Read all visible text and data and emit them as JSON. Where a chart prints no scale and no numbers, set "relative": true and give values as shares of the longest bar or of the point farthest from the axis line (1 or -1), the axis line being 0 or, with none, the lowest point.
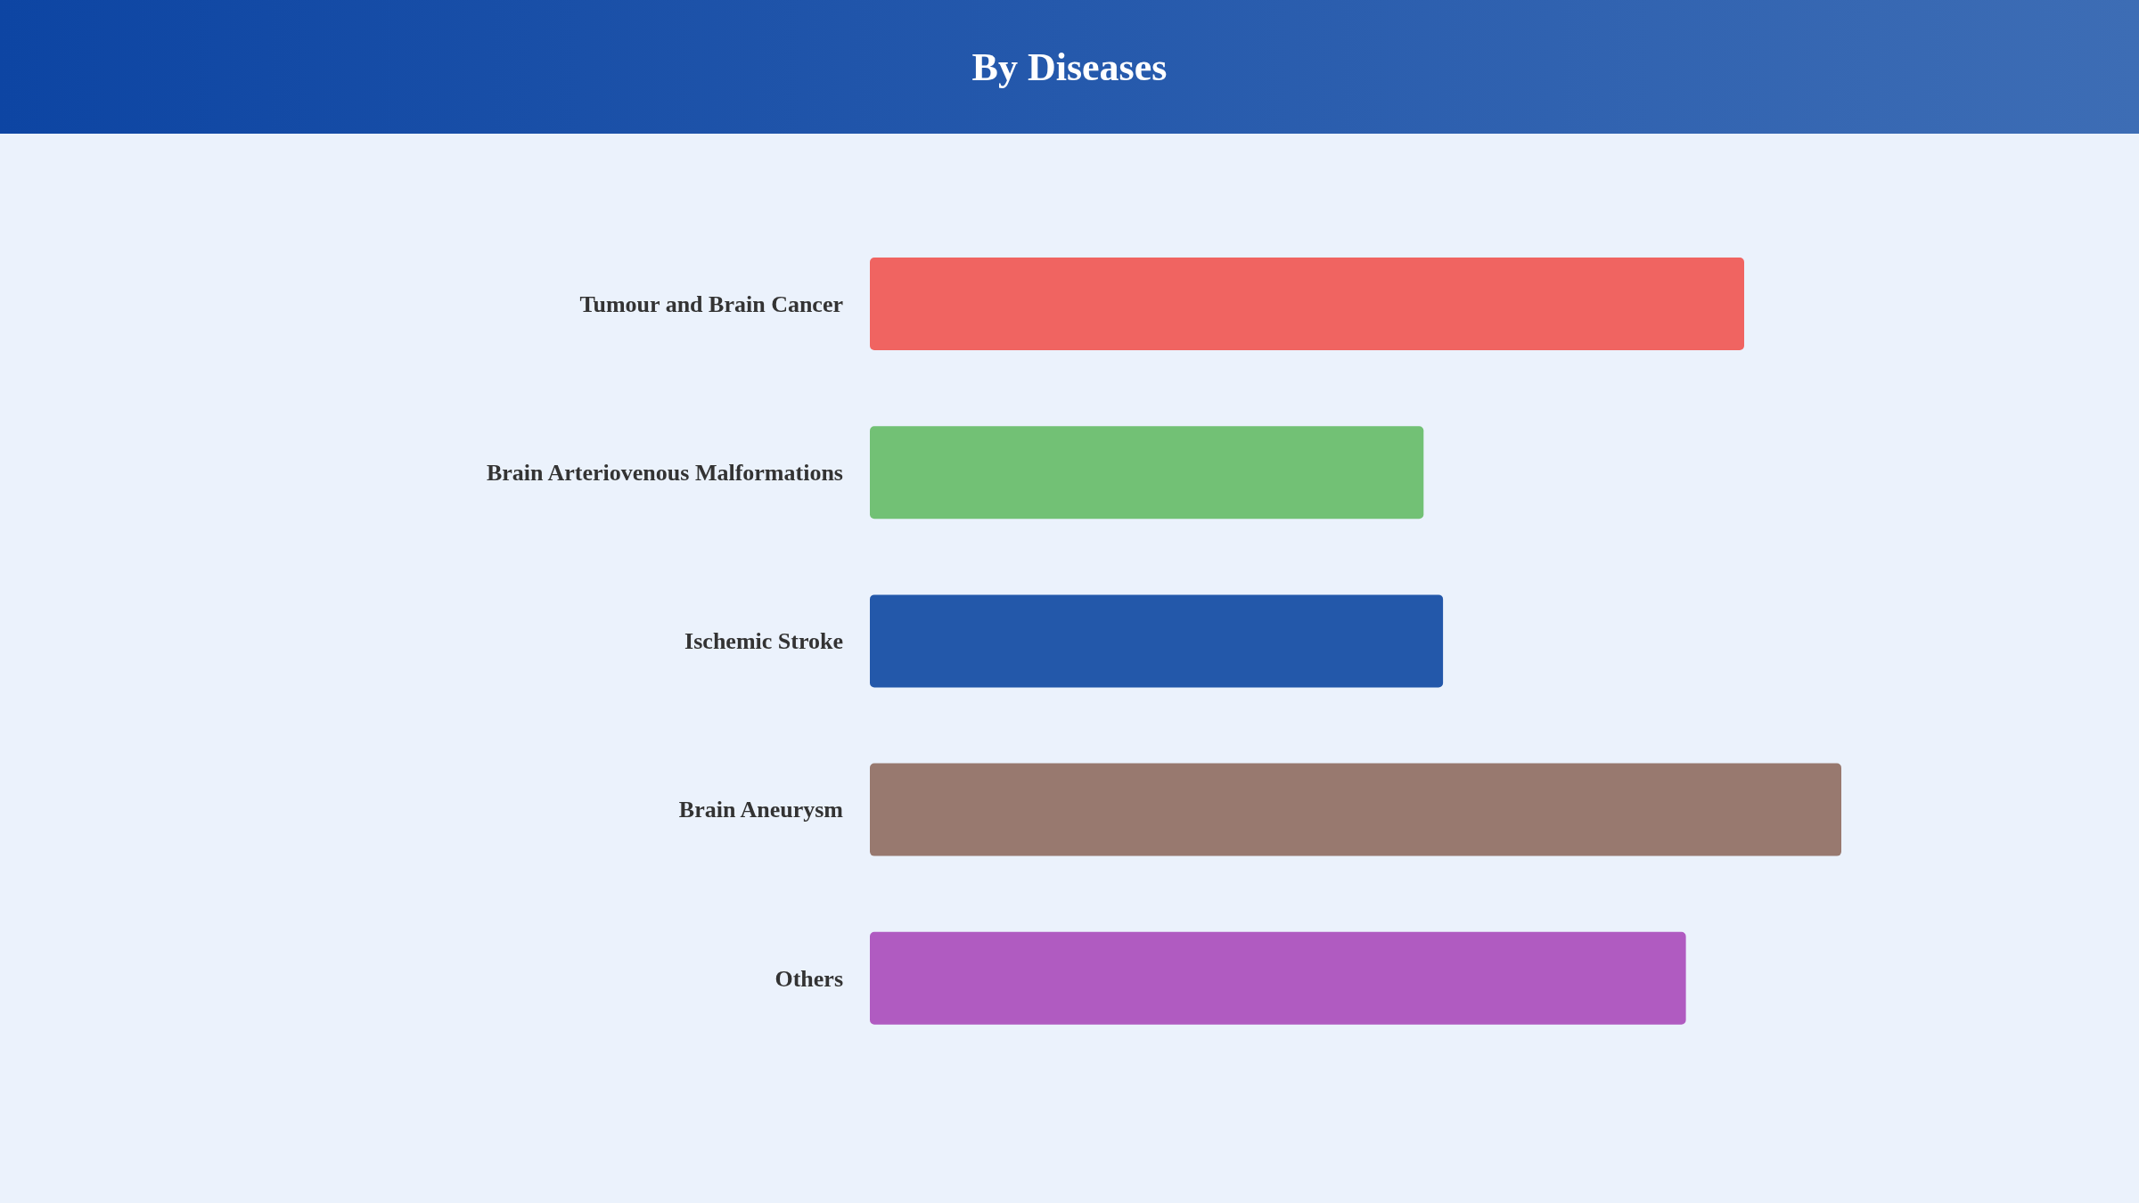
{
  "chart_data": {
    "type": "bar",
    "title": "By Diseases",
    "orientation": "horizontal",
    "relative": true,
    "categories": [
      "Tumour and Brain Cancer",
      "Brain Arteriovenous Malformations",
      "Ischemic Stroke",
      "Brain Aneurysm",
      "Others"
    ],
    "values": [
      0.9,
      0.57,
      0.59,
      1,
      0.84
    ],
    "colors": [
      "#f06461",
      "#72c175",
      "#2358aa",
      "#98796f",
      "#b05bc1"
    ]
  }
}
